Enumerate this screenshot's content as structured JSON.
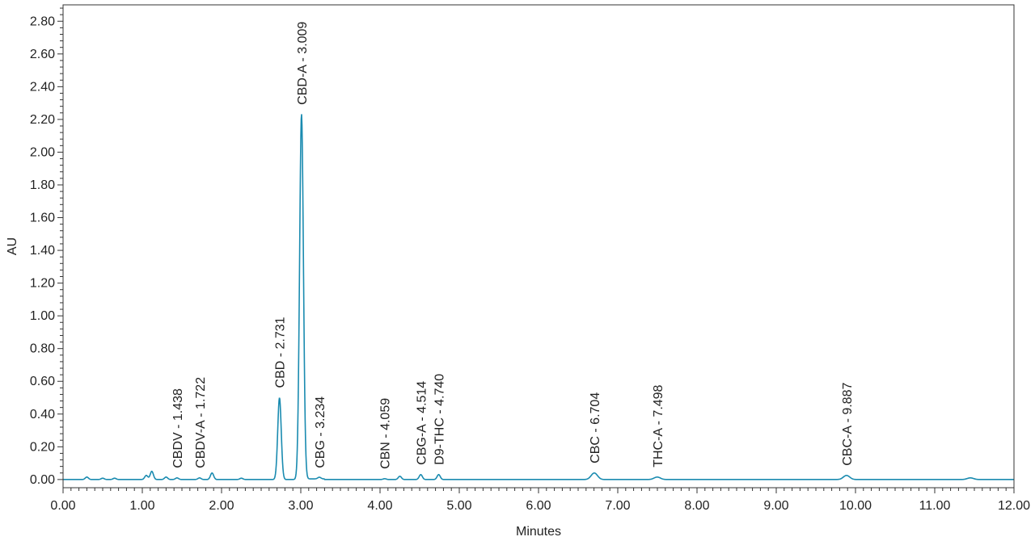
{
  "chart_data": {
    "type": "line",
    "title": "",
    "xlabel": "Minutes",
    "ylabel": "AU",
    "xlim": [
      0,
      12
    ],
    "ylim": [
      -0.05,
      2.9
    ],
    "grid": false,
    "legend": "none",
    "line_color": "#1a8bb0",
    "x_ticks": [
      0,
      1,
      2,
      3,
      4,
      5,
      6,
      7,
      8,
      9,
      10,
      11,
      12
    ],
    "x_tick_labels": [
      "0.00",
      "1.00",
      "2.00",
      "3.00",
      "4.00",
      "5.00",
      "6.00",
      "7.00",
      "8.00",
      "9.00",
      "10.00",
      "11.00",
      "12.00"
    ],
    "y_ticks": [
      0,
      0.2,
      0.4,
      0.6,
      0.8,
      1.0,
      1.2,
      1.4,
      1.6,
      1.8,
      2.0,
      2.2,
      2.4,
      2.6,
      2.8
    ],
    "y_tick_labels": [
      "0.00",
      "0.20",
      "0.40",
      "0.60",
      "0.80",
      "1.00",
      "1.20",
      "1.40",
      "1.60",
      "1.80",
      "2.00",
      "2.20",
      "2.40",
      "2.60",
      "2.80"
    ],
    "peaks": [
      {
        "label": "CBDV - 1.438",
        "rt": 1.438,
        "height": 0.01
      },
      {
        "label": "CBDV-A - 1.722",
        "rt": 1.722,
        "height": 0.01
      },
      {
        "label": "CBD - 2.731",
        "rt": 2.731,
        "height": 0.5
      },
      {
        "label": "CBD-A - 3.009",
        "rt": 3.009,
        "height": 2.23
      },
      {
        "label": "CBG - 3.234",
        "rt": 3.234,
        "height": 0.01
      },
      {
        "label": "CBN - 4.059",
        "rt": 4.059,
        "height": 0.005
      },
      {
        "label": "CBG-A - 4.514",
        "rt": 4.514,
        "height": 0.03
      },
      {
        "label": "D9-THC - 4.740",
        "rt": 4.74,
        "height": 0.03
      },
      {
        "label": "CBC - 6.704",
        "rt": 6.704,
        "height": 0.04
      },
      {
        "label": "THC-A - 7.498",
        "rt": 7.498,
        "height": 0.015
      },
      {
        "label": "CBC-A - 9.887",
        "rt": 9.887,
        "height": 0.025
      }
    ],
    "minor_peaks": [
      {
        "rt": 0.3,
        "height": 0.015
      },
      {
        "rt": 0.5,
        "height": 0.008
      },
      {
        "rt": 0.65,
        "height": 0.008
      },
      {
        "rt": 1.05,
        "height": 0.025
      },
      {
        "rt": 1.12,
        "height": 0.05
      },
      {
        "rt": 1.3,
        "height": 0.015
      },
      {
        "rt": 1.88,
        "height": 0.04
      },
      {
        "rt": 2.25,
        "height": 0.008
      },
      {
        "rt": 4.25,
        "height": 0.02
      },
      {
        "rt": 11.45,
        "height": 0.01
      }
    ]
  }
}
